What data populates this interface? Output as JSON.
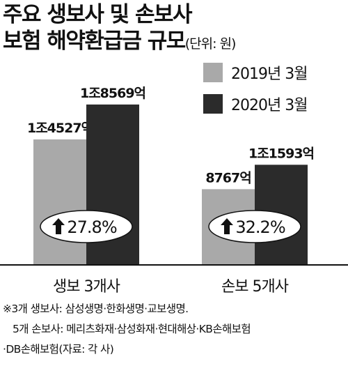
{
  "title": {
    "line1": "주요 생보사 및 손보사",
    "line2": "보험 해약환급금 규모",
    "unit": "(단위: 원)"
  },
  "chart_data": {
    "type": "bar",
    "categories": [
      "생보 3개사",
      "손보 5개사"
    ],
    "series": [
      {
        "name": "2019년 3월",
        "values": [
          14527,
          8767
        ],
        "labels": [
          "1조4527억",
          "8767억"
        ],
        "color": "#a9a9a9"
      },
      {
        "name": "2020년 3월",
        "values": [
          18569,
          11593
        ],
        "labels": [
          "1조8569억",
          "1조1593억"
        ],
        "color": "#2b2b2b"
      }
    ],
    "unit_note": "억 원",
    "growth_labels": [
      "27.8%",
      "32.2%"
    ],
    "growth_icon": "up-arrow-icon",
    "ylim": [
      0,
      23000
    ],
    "legend_position": "top-right",
    "grid": false
  },
  "notes": [
    "※3개 생보사: 삼성생명·한화생명·교보생명.",
    "5개 손보사: 메리츠화재·삼성화재·현대해상·KB손해보험",
    "·DB손해보험(자료: 각 사)"
  ]
}
